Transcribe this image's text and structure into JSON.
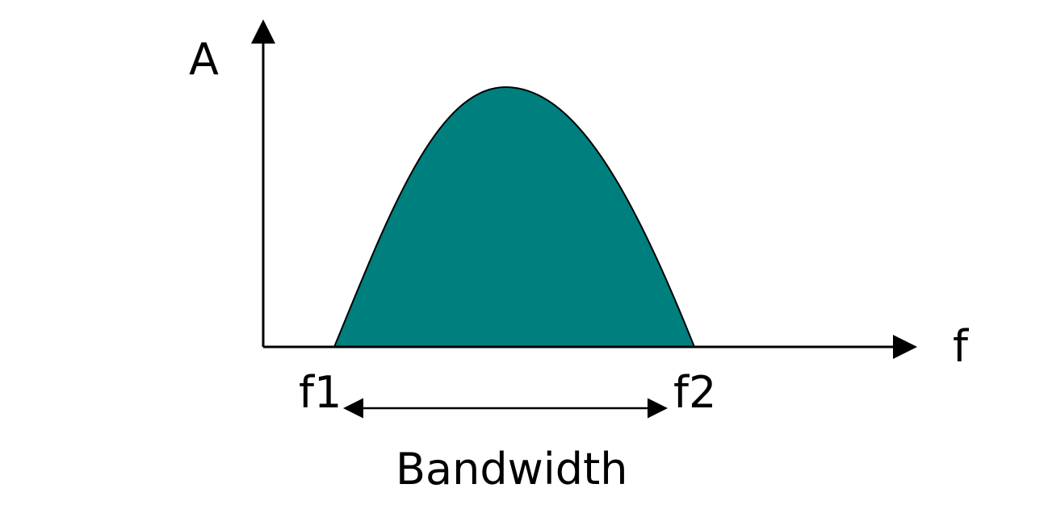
{
  "diagram": {
    "y_axis_label": "A",
    "x_axis_label": "f",
    "f1_label": "f1",
    "f2_label": "f2",
    "bandwidth_label": "Bandwidth",
    "curve_fill_color": "#007f7f",
    "axis_color": "#000000",
    "curve_shape": "parabolic-hump"
  }
}
